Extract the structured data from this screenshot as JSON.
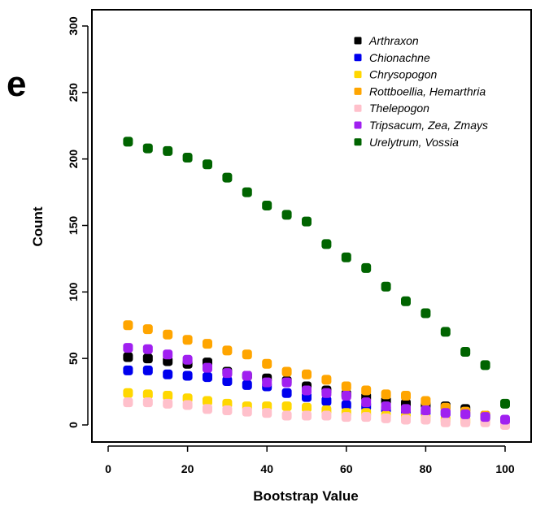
{
  "panel_label": "e",
  "chart_data": {
    "type": "scatter",
    "title": "",
    "xlabel": "Bootstrap Value",
    "ylabel": "Count",
    "xlim": [
      0,
      100
    ],
    "ylim": [
      0,
      300
    ],
    "xticks": [
      0,
      20,
      40,
      60,
      80,
      100
    ],
    "yticks": [
      0,
      50,
      100,
      150,
      200,
      250,
      300
    ],
    "grid": false,
    "legend_position": "top-right",
    "x": [
      5,
      10,
      15,
      20,
      25,
      30,
      35,
      40,
      45,
      50,
      55,
      60,
      65,
      70,
      75,
      80,
      85,
      90,
      95,
      100
    ],
    "series": [
      {
        "name": "Arthraxon",
        "color": "#000000",
        "values": [
          51,
          50,
          48,
          46,
          47,
          40,
          37,
          35,
          33,
          29,
          26,
          23,
          21,
          18,
          16,
          15,
          14,
          12,
          7,
          3
        ]
      },
      {
        "name": "Chionachne",
        "color": "#0000ee",
        "values": [
          41,
          41,
          38,
          37,
          36,
          33,
          30,
          29,
          24,
          21,
          18,
          15,
          14,
          12,
          11,
          10,
          9,
          8,
          6,
          2
        ]
      },
      {
        "name": "Chrysopogon",
        "color": "#ffd700",
        "values": [
          24,
          23,
          22,
          20,
          18,
          16,
          14,
          14,
          14,
          13,
          11,
          9,
          9,
          7,
          6,
          5,
          4,
          3,
          3,
          1
        ]
      },
      {
        "name": "Rottboellia, Hemarthria",
        "color": "#ffa500",
        "values": [
          75,
          72,
          68,
          64,
          61,
          56,
          53,
          46,
          40,
          38,
          34,
          29,
          26,
          23,
          22,
          18,
          13,
          10,
          7,
          3
        ]
      },
      {
        "name": "Thelepogon",
        "color": "#ffc0cb",
        "values": [
          17,
          17,
          16,
          15,
          12,
          11,
          10,
          9,
          7,
          7,
          7,
          6,
          6,
          5,
          4,
          4,
          2,
          2,
          2,
          0
        ]
      },
      {
        "name": "Tripsacum, Zea, Zmays",
        "color": "#a020f0",
        "values": [
          58,
          57,
          53,
          49,
          43,
          39,
          37,
          32,
          32,
          26,
          24,
          22,
          17,
          14,
          12,
          11,
          9,
          8,
          6,
          4
        ]
      },
      {
        "name": "Urelytrum, Vossia",
        "color": "#006400",
        "values": [
          213,
          208,
          206,
          201,
          196,
          186,
          175,
          165,
          158,
          153,
          136,
          126,
          118,
          104,
          93,
          84,
          70,
          55,
          45,
          16
        ]
      }
    ]
  }
}
